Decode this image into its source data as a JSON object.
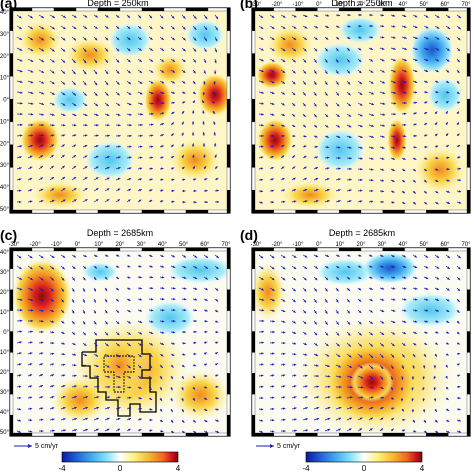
{
  "panels": [
    {
      "id": "a",
      "label": "(a)",
      "title": "Depth = 250km",
      "legend": ""
    },
    {
      "id": "b",
      "label": "(b)",
      "title": "Depth = 250km",
      "legend": ""
    },
    {
      "id": "c",
      "label": "(c)",
      "title": "Depth = 2685km",
      "legend": "5 cm/yr"
    },
    {
      "id": "d",
      "label": "(d)",
      "title": "Depth = 2685km",
      "legend": "5 cm/yr"
    }
  ],
  "axes": {
    "lon_ticks": [
      "-30°",
      "-20°",
      "-10°",
      "0°",
      "10°",
      "20°",
      "30°",
      "40°",
      "50°",
      "60°",
      "70°"
    ],
    "lat_ticks": [
      "40°",
      "30°",
      "20°",
      "10°",
      "0°",
      "-10°",
      "-20°",
      "-30°",
      "-40°",
      "-50°"
    ]
  },
  "colorbar": {
    "ticks": [
      "-4",
      "0",
      "4"
    ],
    "colors": [
      "#0a1aa0",
      "#1f5fd6",
      "#3ea8f0",
      "#7ee3f5",
      "#ffffff",
      "#fff27a",
      "#f7b733",
      "#ee6a1c",
      "#c8151b",
      "#7a0a10"
    ]
  },
  "colors": {
    "vector": "#1a1fb4",
    "hot_core": "#d91e1e",
    "warm": "#f7c232",
    "cold": "#2b74e0",
    "cool": "#7ad8f0"
  }
}
